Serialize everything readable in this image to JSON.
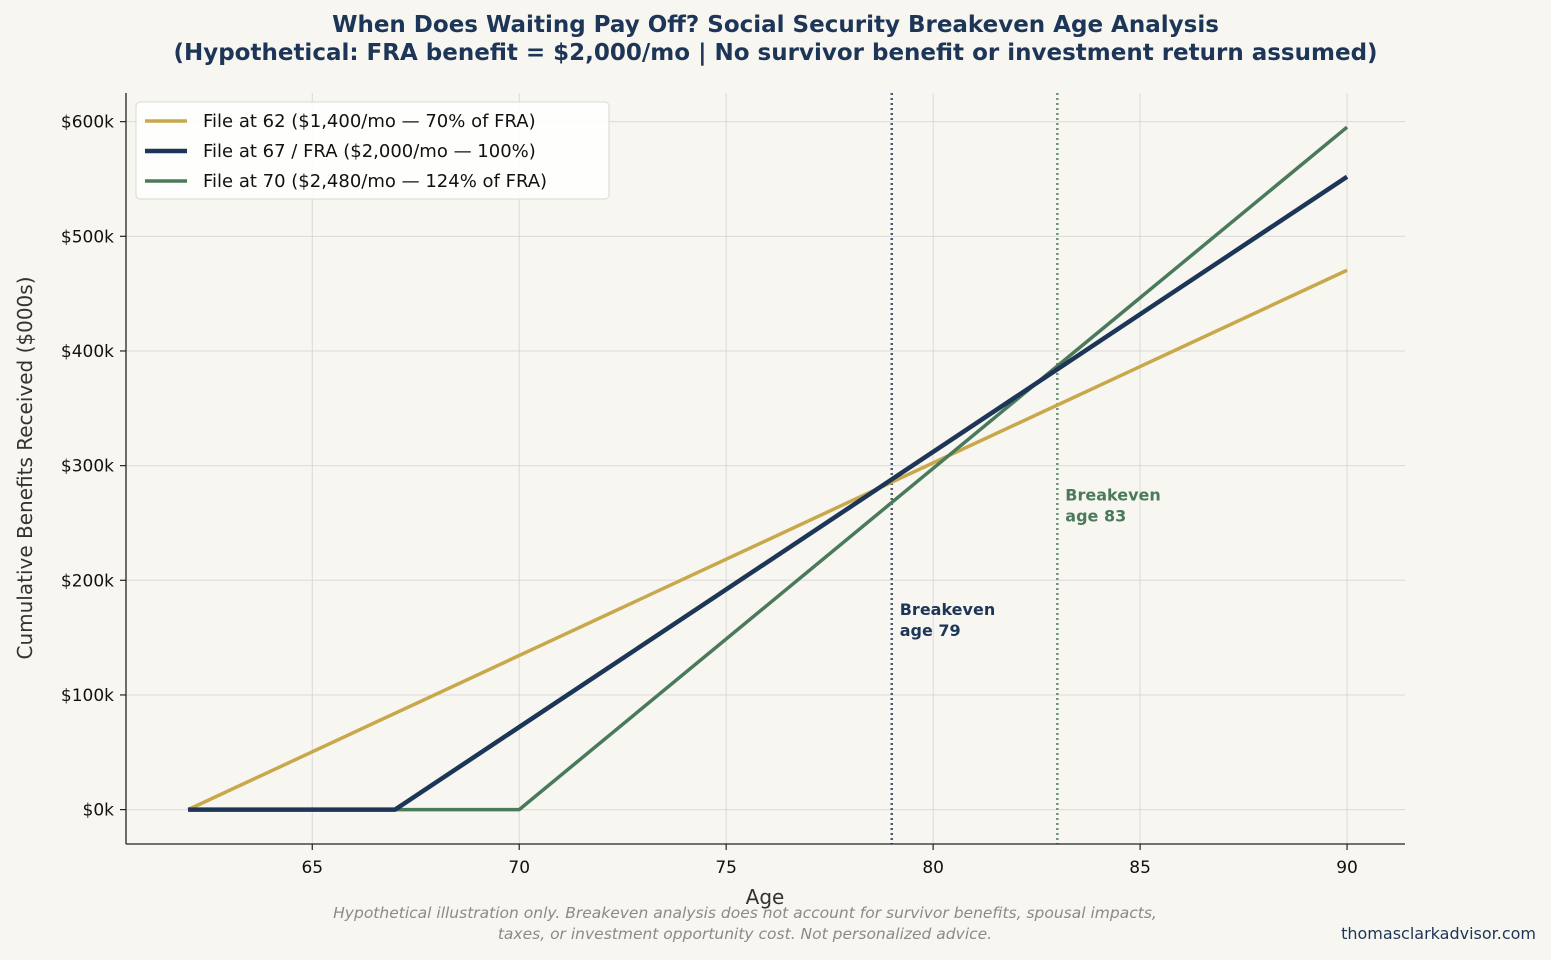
{
  "chart_data": {
    "type": "line",
    "title_line1": "When Does Waiting Pay Off? Social Security Breakeven Age Analysis",
    "title_line2": "(Hypothetical: FRA benefit = $2,000/mo | No survivor benefit or investment return assumed)",
    "xlabel": "Age",
    "ylabel": "Cumulative Benefits Received ($000s)",
    "xlim": [
      60.5,
      91.4
    ],
    "ylim": [
      -30,
      625
    ],
    "x_ticks": [
      65,
      70,
      75,
      80,
      85,
      90
    ],
    "x_tick_labels": [
      "65",
      "70",
      "75",
      "80",
      "85",
      "90"
    ],
    "y_ticks": [
      0,
      100,
      200,
      300,
      400,
      500,
      600
    ],
    "y_tick_labels": [
      "$0k",
      "$100k",
      "$200k",
      "$300k",
      "$400k",
      "$500k",
      "$600k"
    ],
    "grid": true,
    "legend_position": "top-left",
    "series": [
      {
        "name": "File at 62 ($1,400/mo — 70% of FRA)",
        "color": "#c9a84c",
        "x": [
          62,
          90
        ],
        "y": [
          0,
          470.4
        ]
      },
      {
        "name": "File at 67 / FRA ($2,000/mo — 100%)",
        "color": "#1d3557",
        "x": [
          62,
          67,
          90
        ],
        "y": [
          0,
          0,
          552
        ]
      },
      {
        "name": "File at 70 ($2,480/mo — 124% of FRA)",
        "color": "#4a7a5a",
        "x": [
          62,
          70,
          90
        ],
        "y": [
          0,
          0,
          595.2
        ]
      }
    ],
    "annotations": [
      {
        "x": 79,
        "line1": "Breakeven",
        "line2": "age 79",
        "color": "#1d3557",
        "label_y": 160
      },
      {
        "x": 83,
        "line1": "Breakeven",
        "line2": "age 83",
        "color": "#4a7a5a",
        "label_y": 260
      }
    ]
  },
  "footnote_line1": "Hypothetical illustration only. Breakeven analysis does not account for survivor benefits, spousal impacts,",
  "footnote_line2": "taxes, or investment opportunity cost. Not personalized advice.",
  "credit": "thomasclarkadvisor.com"
}
